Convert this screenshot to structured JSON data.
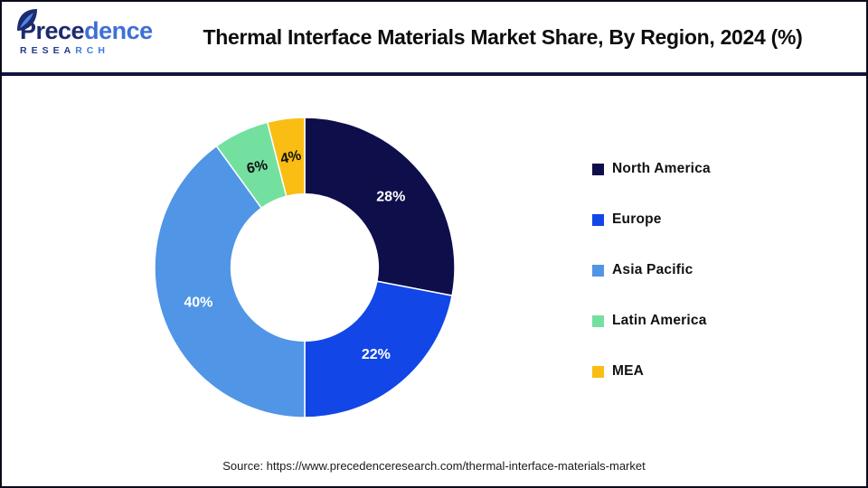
{
  "logo": {
    "word_dark": "Prece",
    "word_light": "dence",
    "subtitle_dark": "RESEA",
    "subtitle_light": "RCH"
  },
  "header": {
    "title": "Thermal Interface Materials Market Share, By Region, 2024 (%)"
  },
  "chart_data": {
    "type": "pie",
    "subtype": "donut",
    "title": "Thermal Interface Materials Market Share, By Region, 2024 (%)",
    "categories": [
      "North America",
      "Europe",
      "Asia Pacific",
      "Latin America",
      "MEA"
    ],
    "values": [
      28,
      22,
      40,
      6,
      4
    ],
    "unit": "%",
    "colors": [
      "#0e0e4b",
      "#1246e6",
      "#5095e6",
      "#74e0a0",
      "#f9bd13"
    ],
    "label_colors": [
      "#ffffff",
      "#ffffff",
      "#ffffff",
      "#111111",
      "#111111"
    ],
    "start_angle_deg": 0,
    "direction": "clockwise",
    "inner_radius_ratio": 0.49,
    "legend_position": "right",
    "grid": false
  },
  "footer": {
    "source": "Source: https://www.precedenceresearch.com/thermal-interface-materials-market"
  },
  "colors": {
    "frame_border": "#0b0b1c",
    "separator": "#11123d",
    "background": "#ffffff",
    "title_text": "#0d0d0d",
    "legend_text": "#111111",
    "source_text": "#1a1a1a"
  }
}
